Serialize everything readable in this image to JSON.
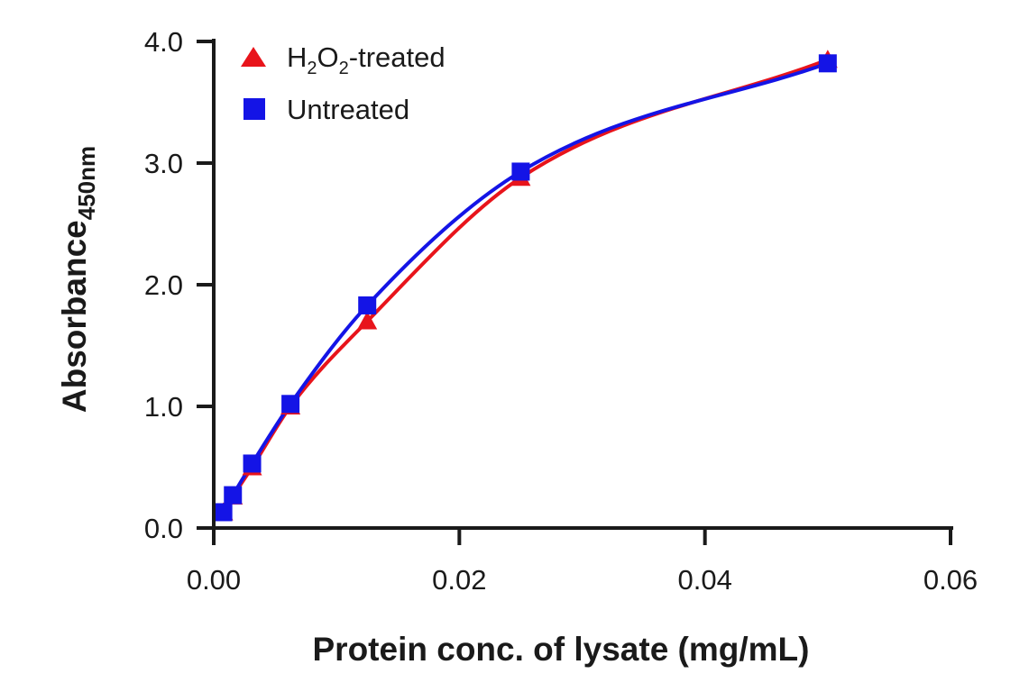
{
  "chart_data": {
    "type": "scatter",
    "title": "",
    "xlabel": "Protein conc. of lysate (mg/mL)",
    "ylabel": {
      "main": "Absorbance",
      "subscript": "450nm"
    },
    "xlim": [
      0,
      0.06
    ],
    "ylim": [
      0,
      4.0
    ],
    "x_ticks": [
      0.0,
      0.02,
      0.04,
      0.06
    ],
    "x_tick_labels": [
      "0.00",
      "0.02",
      "0.04",
      "0.06"
    ],
    "y_ticks": [
      0.0,
      1.0,
      2.0,
      3.0,
      4.0
    ],
    "y_tick_labels": [
      "0.0",
      "1.0",
      "2.0",
      "3.0",
      "4.0"
    ],
    "grid": false,
    "legend_position": "top-left",
    "fit_curve": "saturating",
    "series": [
      {
        "name": "H2O2-treated",
        "legend_parts": [
          "H",
          "2",
          "O",
          "2",
          "-treated"
        ],
        "marker": "triangle",
        "color": "#e8141b",
        "x": [
          0.00078,
          0.00156,
          0.003125,
          0.00625,
          0.0125,
          0.025,
          0.05
        ],
        "y": [
          0.13,
          0.26,
          0.5,
          1.0,
          1.7,
          2.88,
          3.85
        ]
      },
      {
        "name": "Untreated",
        "marker": "square",
        "color": "#1414e6",
        "x": [
          0.00078,
          0.00156,
          0.003125,
          0.00625,
          0.0125,
          0.025,
          0.05
        ],
        "y": [
          0.13,
          0.27,
          0.53,
          1.02,
          1.83,
          2.93,
          3.82
        ]
      }
    ]
  }
}
